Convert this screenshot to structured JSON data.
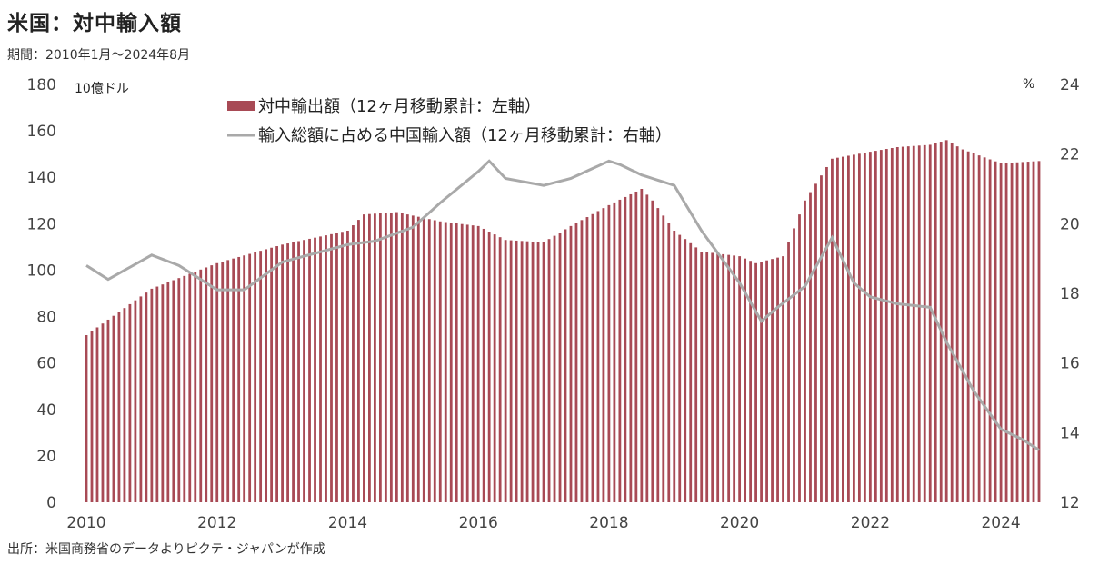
{
  "title": "米国：対中輸入額",
  "subtitle": "期間：2010年1月～2024年8月",
  "source": "出所：米国商務省のデータよりピクテ・ジャパンが作成",
  "colors": {
    "bars": "#a84a55",
    "line": "#a9a9a9"
  },
  "chart_data": {
    "type": "bar",
    "title": "米国：対中輸入額",
    "left_axis": {
      "unit_label": "10億ドル",
      "range": [
        0,
        180
      ],
      "ticks": [
        "0",
        "20",
        "40",
        "60",
        "80",
        "100",
        "120",
        "140",
        "160",
        "180"
      ]
    },
    "right_axis": {
      "unit_label": "%",
      "range": [
        12,
        24
      ],
      "ticks": [
        "12",
        "14",
        "16",
        "18",
        "20",
        "22",
        "24"
      ]
    },
    "x_ticks": [
      "2010",
      "2012",
      "2014",
      "2016",
      "2018",
      "2020",
      "2022",
      "2024"
    ],
    "x_range": [
      "2010-01",
      "2024-08"
    ],
    "legend_placement": "top-center",
    "series": [
      {
        "name": "対中輸出額（12ヶ月移動累計：左軸）",
        "type": "bar",
        "axis": "left",
        "knots": [
          [
            "2010-01",
            72
          ],
          [
            "2011-01",
            92
          ],
          [
            "2012-01",
            103
          ],
          [
            "2013-01",
            111
          ],
          [
            "2014-01",
            117
          ],
          [
            "2014-04",
            124
          ],
          [
            "2014-10",
            125
          ],
          [
            "2015-06",
            121
          ],
          [
            "2016-01",
            119
          ],
          [
            "2016-06",
            113
          ],
          [
            "2017-01",
            112
          ],
          [
            "2017-06",
            119
          ],
          [
            "2018-01",
            128
          ],
          [
            "2018-07",
            135
          ],
          [
            "2018-09",
            130
          ],
          [
            "2019-01",
            117
          ],
          [
            "2019-06",
            108
          ],
          [
            "2020-01",
            106
          ],
          [
            "2020-04",
            103
          ],
          [
            "2020-09",
            106
          ],
          [
            "2021-01",
            130
          ],
          [
            "2021-06",
            148
          ],
          [
            "2022-01",
            151
          ],
          [
            "2022-06",
            153
          ],
          [
            "2022-12",
            154
          ],
          [
            "2023-03",
            156
          ],
          [
            "2023-06",
            152
          ],
          [
            "2024-01",
            146
          ],
          [
            "2024-08",
            147
          ]
        ]
      },
      {
        "name": "輸入総額に占める中国輸入額（12ヶ月移動累計：右軸）",
        "type": "line",
        "axis": "right",
        "knots": [
          [
            "2010-01",
            18.8
          ],
          [
            "2010-05",
            18.4
          ],
          [
            "2011-01",
            19.1
          ],
          [
            "2011-06",
            18.8
          ],
          [
            "2012-01",
            18.1
          ],
          [
            "2012-06",
            18.1
          ],
          [
            "2013-01",
            18.9
          ],
          [
            "2014-01",
            19.4
          ],
          [
            "2014-06",
            19.5
          ],
          [
            "2015-01",
            19.9
          ],
          [
            "2015-06",
            20.6
          ],
          [
            "2016-01",
            21.5
          ],
          [
            "2016-03",
            21.8
          ],
          [
            "2016-06",
            21.3
          ],
          [
            "2017-01",
            21.1
          ],
          [
            "2017-06",
            21.3
          ],
          [
            "2018-01",
            21.8
          ],
          [
            "2018-03",
            21.7
          ],
          [
            "2018-07",
            21.4
          ],
          [
            "2019-01",
            21.1
          ],
          [
            "2019-06",
            19.8
          ],
          [
            "2020-01",
            18.3
          ],
          [
            "2020-05",
            17.2
          ],
          [
            "2020-08",
            17.6
          ],
          [
            "2021-01",
            18.2
          ],
          [
            "2021-06",
            19.6
          ],
          [
            "2021-10",
            18.3
          ],
          [
            "2022-01",
            17.9
          ],
          [
            "2022-06",
            17.7
          ],
          [
            "2022-12",
            17.6
          ],
          [
            "2023-03",
            16.6
          ],
          [
            "2023-08",
            15.2
          ],
          [
            "2024-01",
            14.1
          ],
          [
            "2024-05",
            13.8
          ],
          [
            "2024-08",
            13.5
          ]
        ]
      }
    ]
  }
}
